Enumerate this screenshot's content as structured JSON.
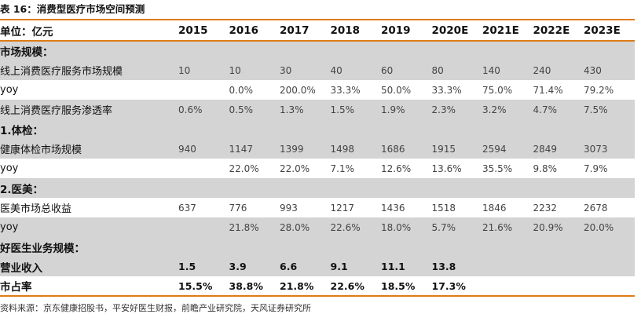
{
  "title": "表 16：消费型医疗市场空间预测",
  "header": {
    "unit_label": "单位：亿元",
    "years": [
      "2015",
      "2016",
      "2017",
      "2018",
      "2019",
      "2020E",
      "2021E",
      "2022E",
      "2023E"
    ]
  },
  "rows": [
    {
      "label": "市场规模：",
      "values": [
        "",
        "",
        "",
        "",
        "",
        "",
        "",
        "",
        ""
      ]
    },
    {
      "label": "线上消费医疗服务市场规模",
      "values": [
        "10",
        "10",
        "30",
        "40",
        "60",
        "80",
        "140",
        "240",
        "430"
      ]
    },
    {
      "label": "yoy",
      "values": [
        "",
        "0.0%",
        "200.0%",
        "33.3%",
        "50.0%",
        "33.3%",
        "75.0%",
        "71.4%",
        "79.2%"
      ]
    },
    {
      "label": "线上消费医疗服务渗透率",
      "values": [
        "0.6%",
        "0.5%",
        "1.3%",
        "1.5%",
        "1.9%",
        "2.3%",
        "3.2%",
        "4.7%",
        "7.5%"
      ]
    },
    {
      "label": "1.体检：",
      "values": [
        "",
        "",
        "",
        "",
        "",
        "",
        "",
        "",
        ""
      ]
    },
    {
      "label": "健康体检市场规模",
      "values": [
        "940",
        "1147",
        "1399",
        "1498",
        "1686",
        "1915",
        "2594",
        "2849",
        "3073"
      ]
    },
    {
      "label": "yoy",
      "values": [
        "",
        "22.0%",
        "22.0%",
        "7.1%",
        "12.6%",
        "13.6%",
        "35.5%",
        "9.8%",
        "7.9%"
      ]
    },
    {
      "label": "2.医美：",
      "values": [
        "",
        "",
        "",
        "",
        "",
        "",
        "",
        "",
        ""
      ]
    },
    {
      "label": "医美市场总收益",
      "values": [
        "637",
        "776",
        "993",
        "1217",
        "1436",
        "1518",
        "1846",
        "2232",
        "2678"
      ]
    },
    {
      "label": "yoy",
      "values": [
        "",
        "21.8%",
        "28.0%",
        "22.6%",
        "18.0%",
        "5.7%",
        "21.6%",
        "20.9%",
        "20.0%"
      ]
    },
    {
      "label": "好医生业务规模：",
      "values": [
        "",
        "",
        "",
        "",
        "",
        "",
        "",
        "",
        ""
      ]
    },
    {
      "label": "营业收入",
      "values": [
        "1.5",
        "3.9",
        "6.6",
        "9.1",
        "11.1",
        "13.8",
        "",
        "",
        ""
      ]
    },
    {
      "label": "市占率",
      "values": [
        "15.5%",
        "38.8%",
        "21.8%",
        "22.6%",
        "18.5%",
        "17.3%",
        "",
        "",
        ""
      ]
    }
  ],
  "source": "资料来源：京东健康招股书，平安好医生财报，前瞻产业研究院，天风证券研究所",
  "colors": {
    "rule": "#e07b16",
    "band": "#d4d4d4"
  }
}
